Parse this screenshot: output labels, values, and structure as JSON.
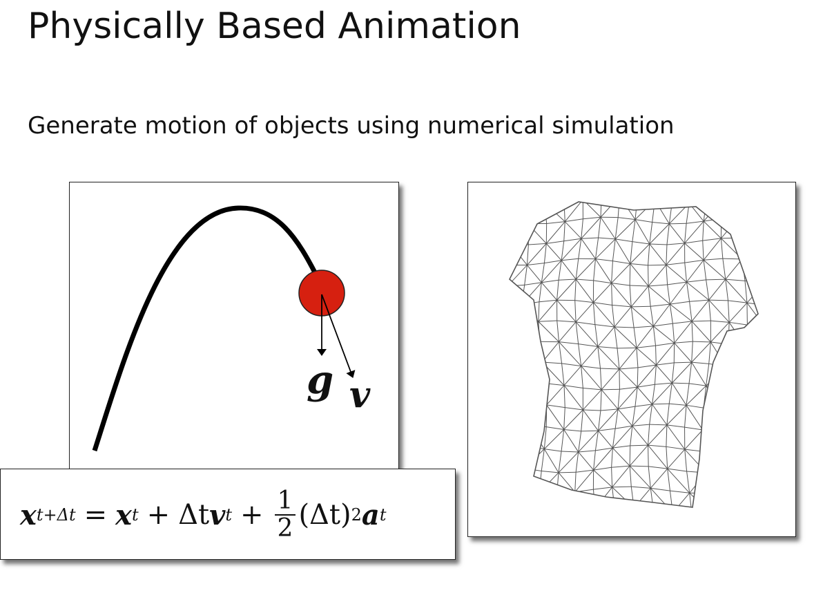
{
  "slide": {
    "title": "Physically Based Animation",
    "subtitle": "Generate motion of objects using numerical simulation"
  },
  "diagram": {
    "gravity_label": "g",
    "velocity_label": "v",
    "ball_color": "#d62010",
    "trajectory_color": "#000000"
  },
  "formula": {
    "lhs_var": "x",
    "lhs_sup": "t+Δt",
    "eq": "=",
    "term1_var": "x",
    "term1_sup": "t",
    "plus1": "+",
    "term2_delta": "Δt",
    "term2_var": "v",
    "term2_sup": "t",
    "plus2": "+",
    "frac_num": "1",
    "frac_den": "2",
    "term3_paren": "(Δt)",
    "term3_pow": "2",
    "term3_var": "a",
    "term3_sup": "t"
  },
  "cloth": {
    "mesh_color": "#555555"
  }
}
